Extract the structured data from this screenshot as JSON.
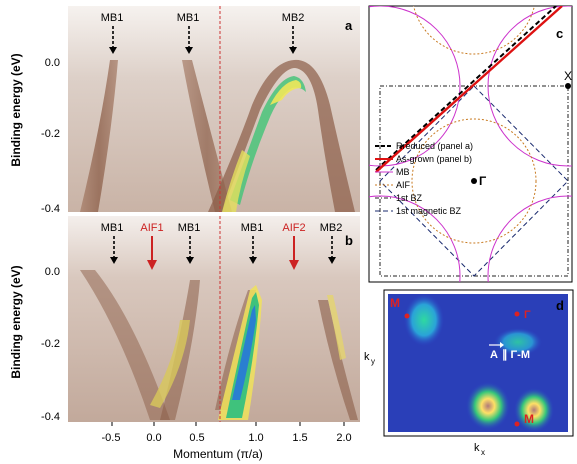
{
  "figure": {
    "y_axis_label": "Binding energy (eV)",
    "x_axis_label": "Momentum (π/a)",
    "panel_a": {
      "letter": "a",
      "y_ticks": [
        "0.0",
        "-0.2",
        "-0.4"
      ],
      "markers": [
        {
          "label": "MB1",
          "color": "black"
        },
        {
          "label": "MB1",
          "color": "black"
        },
        {
          "label": "MB2",
          "color": "black"
        }
      ]
    },
    "panel_b": {
      "letter": "b",
      "y_ticks": [
        "0.0",
        "-0.2",
        "-0.4"
      ],
      "x_ticks": [
        "-0.5",
        "0.0",
        "0.5",
        "1.0",
        "1.5",
        "2.0"
      ],
      "markers": [
        {
          "label": "MB1",
          "color": "black"
        },
        {
          "label": "AIF1",
          "color": "red"
        },
        {
          "label": "MB1",
          "color": "black"
        },
        {
          "label": "MB1",
          "color": "black"
        },
        {
          "label": "AIF2",
          "color": "red"
        },
        {
          "label": "MB2",
          "color": "black"
        }
      ]
    },
    "panel_c": {
      "letter": "c",
      "point_X": "X",
      "point_Gamma": "Γ",
      "legend": [
        {
          "label": "Rreduced (panel a)",
          "style": "black-dashed"
        },
        {
          "label": "As-grown (panel b)",
          "style": "red-solid"
        },
        {
          "label": "MB",
          "style": "magenta-solid"
        },
        {
          "label": "AIF",
          "style": "orange-dotted"
        },
        {
          "label": "1st BZ",
          "style": "black-dashdot"
        },
        {
          "label": "1st magnetic BZ",
          "style": "navy-dashed"
        }
      ]
    },
    "panel_d": {
      "letter": "d",
      "label_M": "M",
      "label_Gamma": "Γ",
      "label_M2": "M",
      "annotation_vec": "A",
      "annotation_rest": "∥ Γ-M",
      "ky": "k",
      "ky_sub": "y",
      "kx": "k",
      "kx_sub": "x"
    }
  }
}
